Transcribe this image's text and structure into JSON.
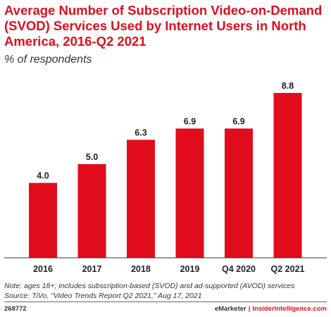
{
  "chart_data": {
    "type": "bar",
    "title": "Average Number of Subscription Video-on-Demand (SVOD) Services Used by Internet Users in North America, 2016-Q2 2021",
    "subtitle": "% of respondents",
    "categories": [
      "2016",
      "2017",
      "2018",
      "2019",
      "Q4 2020",
      "Q2 2021"
    ],
    "values": [
      4.0,
      5.0,
      6.3,
      6.9,
      6.9,
      8.8
    ],
    "value_labels": [
      "4.0",
      "5.0",
      "6.3",
      "6.9",
      "6.9",
      "8.8"
    ],
    "ylim": [
      0,
      10
    ],
    "grid": false,
    "legend": "none",
    "xlabel": "",
    "ylabel": "",
    "bar_color": "#e10d1d"
  },
  "notes": {
    "line1": "Note: ages 18+; includes subscription-based (SVOD) and ad-supported (AVOD) services",
    "line2": "Source: TiVo, \"Video Trends Report Q2 2021,\" Aug 17, 2021"
  },
  "footer": {
    "chart_id": "268772",
    "brand_left": "eMarketer",
    "divider": "|",
    "brand_right": "InsiderIntelligence.com"
  }
}
